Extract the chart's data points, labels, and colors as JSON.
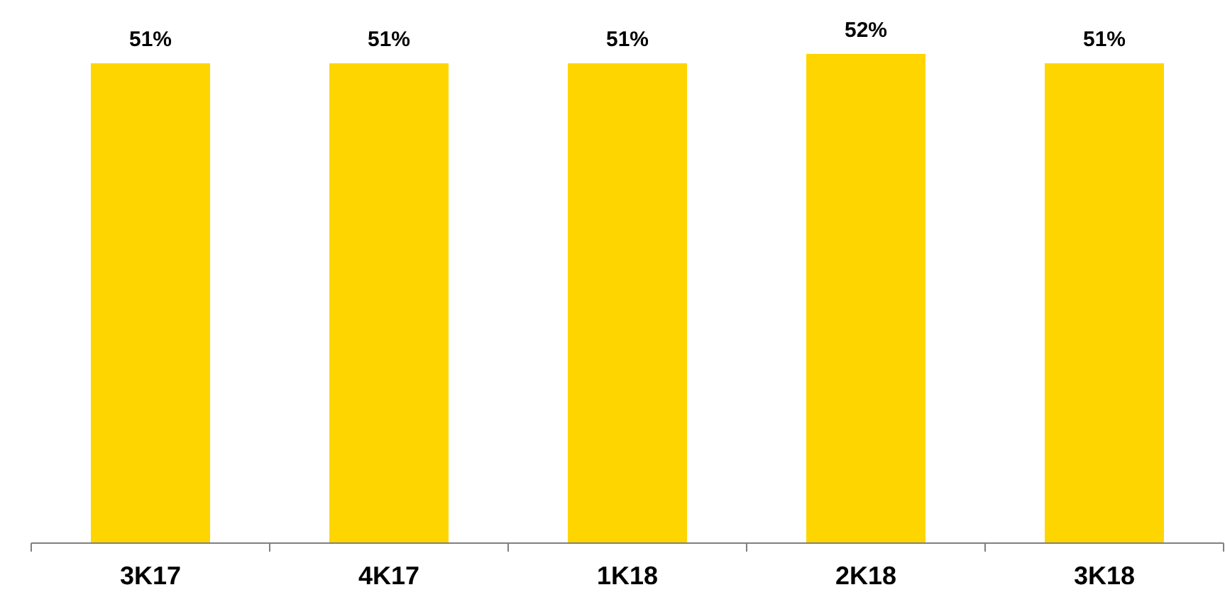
{
  "chart_data": {
    "type": "bar",
    "categories": [
      "3K17",
      "4K17",
      "1K18",
      "2K18",
      "3K18"
    ],
    "values": [
      51,
      51,
      51,
      52,
      51
    ],
    "value_labels": [
      "51%",
      "51%",
      "51%",
      "52%",
      "51%"
    ],
    "color": "#ffd500"
  }
}
